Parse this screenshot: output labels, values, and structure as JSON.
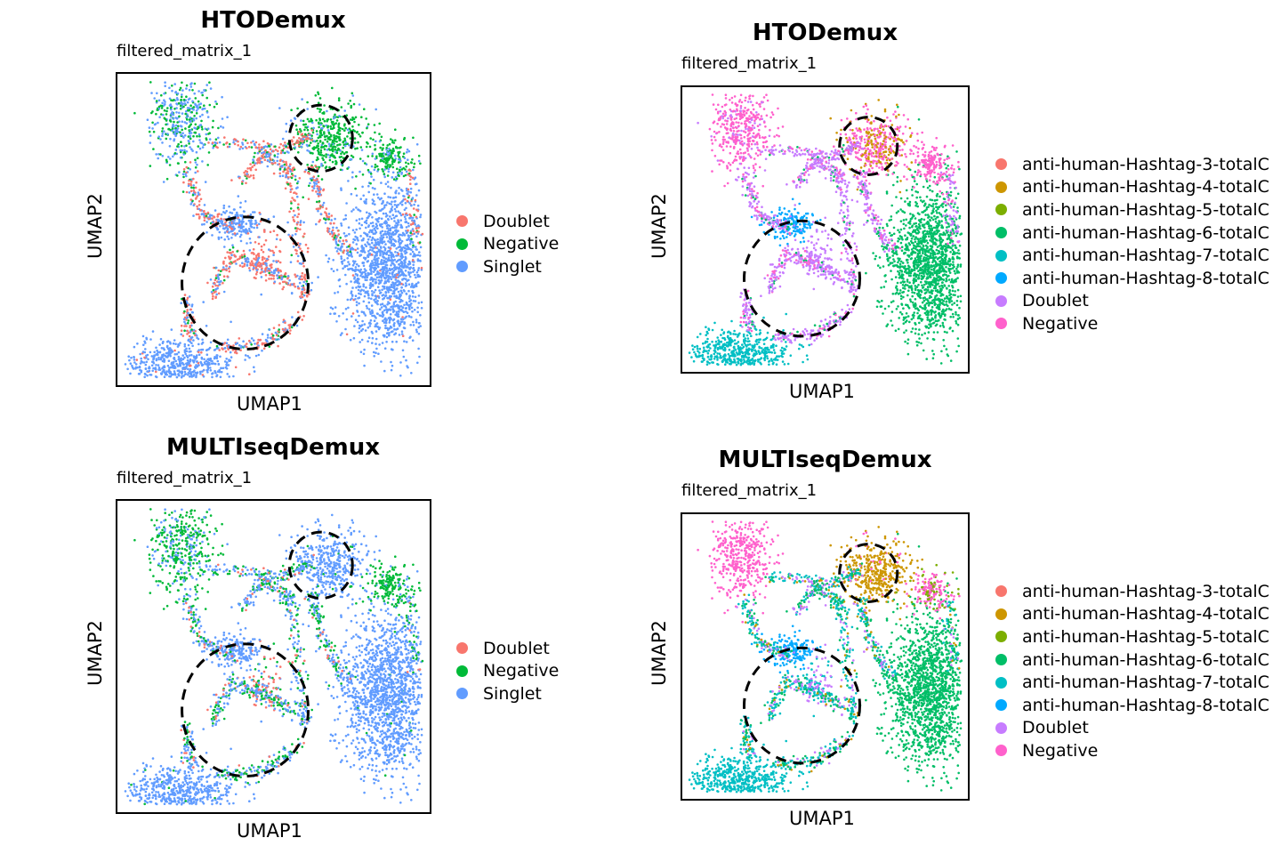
{
  "chart_data": [
    {
      "type": "scatter",
      "title": "HTODemux",
      "subtitle": "filtered_matrix_1",
      "xlabel": "UMAP1",
      "ylabel": "UMAP2",
      "legend_position": "right",
      "series": [
        {
          "name": "Doublet",
          "color": "#F8766D"
        },
        {
          "name": "Negative",
          "color": "#00BA38"
        },
        {
          "name": "Singlet",
          "color": "#619CFF"
        }
      ]
    },
    {
      "type": "scatter",
      "title": "HTODemux",
      "subtitle": "filtered_matrix_1",
      "xlabel": "UMAP1",
      "ylabel": "UMAP2",
      "legend_position": "right",
      "series": [
        {
          "name": "anti-human-Hashtag-3-totalC",
          "color": "#F8766D"
        },
        {
          "name": "anti-human-Hashtag-4-totalC",
          "color": "#CD9600"
        },
        {
          "name": "anti-human-Hashtag-5-totalC",
          "color": "#7CAE00"
        },
        {
          "name": "anti-human-Hashtag-6-totalC",
          "color": "#00BE67"
        },
        {
          "name": "anti-human-Hashtag-7-totalC",
          "color": "#00BFC4"
        },
        {
          "name": "anti-human-Hashtag-8-totalC",
          "color": "#00A9FF"
        },
        {
          "name": "Doublet",
          "color": "#C77CFF"
        },
        {
          "name": "Negative",
          "color": "#FF61CC"
        }
      ]
    },
    {
      "type": "scatter",
      "title": "MULTIseqDemux",
      "subtitle": "filtered_matrix_1",
      "xlabel": "UMAP1",
      "ylabel": "UMAP2",
      "legend_position": "right",
      "series": [
        {
          "name": "Doublet",
          "color": "#F8766D"
        },
        {
          "name": "Negative",
          "color": "#00BA38"
        },
        {
          "name": "Singlet",
          "color": "#619CFF"
        }
      ]
    },
    {
      "type": "scatter",
      "title": "MULTIseqDemux",
      "subtitle": "filtered_matrix_1",
      "xlabel": "UMAP1",
      "ylabel": "UMAP2",
      "legend_position": "right",
      "series": [
        {
          "name": "anti-human-Hashtag-3-totalC",
          "color": "#F8766D"
        },
        {
          "name": "anti-human-Hashtag-4-totalC",
          "color": "#CD9600"
        },
        {
          "name": "anti-human-Hashtag-5-totalC",
          "color": "#7CAE00"
        },
        {
          "name": "anti-human-Hashtag-6-totalC",
          "color": "#00BE67"
        },
        {
          "name": "anti-human-Hashtag-7-totalC",
          "color": "#00BFC4"
        },
        {
          "name": "anti-human-Hashtag-8-totalC",
          "color": "#00A9FF"
        },
        {
          "name": "Doublet",
          "color": "#C77CFF"
        },
        {
          "name": "Negative",
          "color": "#FF61CC"
        }
      ]
    }
  ]
}
